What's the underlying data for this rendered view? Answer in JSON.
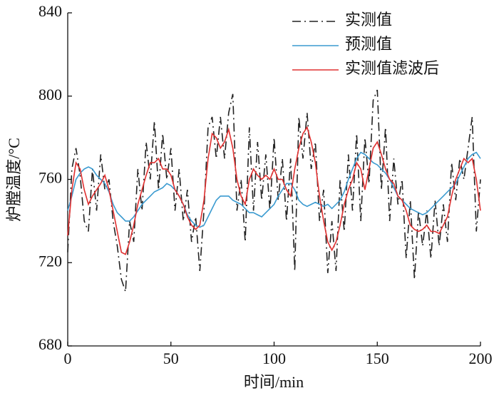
{
  "chart_data": {
    "type": "line",
    "xlabel": "时间/min",
    "ylabel": "炉膛温度/°C",
    "xlim": [
      0,
      200
    ],
    "xticks": [
      0,
      50,
      100,
      150,
      200
    ],
    "ylim": [
      680,
      840
    ],
    "yticks": [
      680,
      720,
      760,
      800,
      840
    ],
    "grid": false,
    "legend": "upper right",
    "x": [
      0,
      2,
      4,
      6,
      8,
      10,
      12,
      14,
      16,
      18,
      20,
      22,
      24,
      26,
      28,
      30,
      32,
      34,
      36,
      38,
      40,
      42,
      44,
      46,
      48,
      50,
      52,
      54,
      56,
      58,
      60,
      62,
      64,
      66,
      68,
      70,
      72,
      74,
      76,
      78,
      80,
      82,
      84,
      86,
      88,
      90,
      92,
      94,
      96,
      98,
      100,
      102,
      104,
      106,
      108,
      110,
      112,
      114,
      116,
      118,
      120,
      122,
      124,
      126,
      128,
      130,
      132,
      134,
      136,
      138,
      140,
      142,
      144,
      146,
      148,
      150,
      152,
      154,
      156,
      158,
      160,
      162,
      164,
      166,
      168,
      170,
      172,
      174,
      176,
      178,
      180,
      182,
      184,
      186,
      188,
      190,
      192,
      194,
      196,
      198,
      200
    ],
    "series": [
      {
        "name": "实测值",
        "color": "#222222",
        "dash": "dashdot",
        "values": [
          725,
          765,
          775,
          762,
          740,
          735,
          765,
          745,
          772,
          755,
          760,
          740,
          728,
          712,
          706,
          740,
          730,
          765,
          745,
          778,
          760,
          788,
          755,
          782,
          760,
          775,
          745,
          765,
          740,
          755,
          730,
          742,
          716,
          745,
          785,
          790,
          770,
          790,
          770,
          792,
          801,
          745,
          760,
          730,
          785,
          745,
          778,
          750,
          772,
          745,
          780,
          750,
          770,
          740,
          770,
          716,
          790,
          770,
          792,
          765,
          778,
          740,
          755,
          715,
          740,
          716,
          760,
          735,
          772,
          745,
          782,
          740,
          780,
          758,
          798,
          803,
          755,
          785,
          740,
          770,
          748,
          760,
          722,
          750,
          712,
          745,
          728,
          745,
          722,
          750,
          728,
          748,
          730,
          768,
          750,
          770,
          760,
          775,
          790,
          735,
          760
        ]
      },
      {
        "name": "预测值",
        "color": "#3a9ad0",
        "dash": "solid",
        "values": [
          745,
          752,
          760,
          763,
          765,
          766,
          765,
          762,
          760,
          758,
          754,
          748,
          744,
          742,
          740,
          740,
          742,
          745,
          748,
          750,
          752,
          754,
          755,
          756,
          758,
          757,
          755,
          752,
          748,
          743,
          740,
          738,
          737,
          738,
          742,
          746,
          750,
          752,
          752,
          752,
          750,
          749,
          748,
          746,
          744,
          744,
          743,
          742,
          744,
          746,
          748,
          752,
          755,
          758,
          758,
          755,
          750,
          748,
          747,
          748,
          749,
          748,
          747,
          748,
          746,
          748,
          750,
          754,
          760,
          765,
          770,
          773,
          772,
          770,
          768,
          767,
          765,
          763,
          760,
          756,
          752,
          750,
          748,
          746,
          745,
          744,
          743,
          744,
          746,
          748,
          750,
          752,
          754,
          756,
          758,
          762,
          766,
          770,
          772,
          773,
          770
        ]
      },
      {
        "name": "实测值滤波后",
        "color": "#e03030",
        "dash": "solid",
        "values": [
          733,
          755,
          768,
          765,
          755,
          748,
          752,
          755,
          758,
          762,
          755,
          745,
          735,
          725,
          724,
          730,
          738,
          748,
          755,
          762,
          768,
          768,
          770,
          765,
          765,
          762,
          755,
          752,
          748,
          742,
          738,
          736,
          738,
          750,
          770,
          782,
          780,
          775,
          778,
          784,
          775,
          760,
          752,
          748,
          760,
          765,
          762,
          760,
          762,
          760,
          765,
          760,
          760,
          755,
          752,
          765,
          775,
          782,
          785,
          778,
          768,
          752,
          740,
          730,
          726,
          730,
          738,
          748,
          755,
          760,
          768,
          765,
          755,
          765,
          775,
          778,
          772,
          765,
          760,
          758,
          752,
          750,
          745,
          738,
          736,
          735,
          736,
          738,
          735,
          735,
          734,
          738,
          742,
          752,
          760,
          765,
          770,
          768,
          770,
          760,
          745
        ]
      }
    ]
  }
}
